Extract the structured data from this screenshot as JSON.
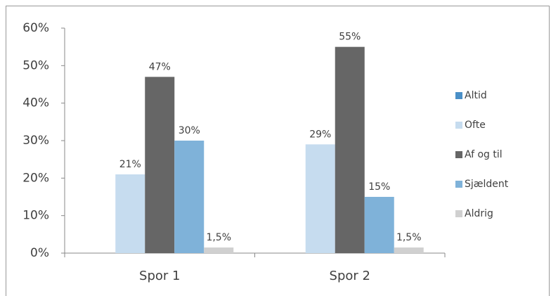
{
  "chart_data": {
    "type": "bar",
    "categories": [
      "Spor 1",
      "Spor 2"
    ],
    "series": [
      {
        "name": "Altid",
        "color": "#4a8fc7",
        "values": [
          null,
          null
        ]
      },
      {
        "name": "Ofte",
        "color": "#c6dcef",
        "values": [
          21,
          29
        ],
        "value_labels": [
          "21%",
          "29%"
        ]
      },
      {
        "name": "Af og til",
        "color": "#666666",
        "values": [
          47,
          55
        ],
        "value_labels": [
          "47%",
          "55%"
        ]
      },
      {
        "name": "Sjældent",
        "color": "#7fb2d9",
        "values": [
          30,
          15
        ],
        "value_labels": [
          "30%",
          "15%"
        ]
      },
      {
        "name": "Aldrig",
        "color": "#d0d0d0",
        "values": [
          1.5,
          1.5
        ],
        "value_labels": [
          "1,5%",
          "1,5%"
        ]
      }
    ],
    "ylim": [
      0,
      60
    ],
    "yticks": [
      {
        "value": 0,
        "label": "0%"
      },
      {
        "value": 10,
        "label": "10%"
      },
      {
        "value": 20,
        "label": "20%"
      },
      {
        "value": 30,
        "label": "30%"
      },
      {
        "value": 40,
        "label": "40%"
      },
      {
        "value": 50,
        "label": "50%"
      },
      {
        "value": 60,
        "label": "60%"
      }
    ],
    "grid": false,
    "legend": "right"
  }
}
